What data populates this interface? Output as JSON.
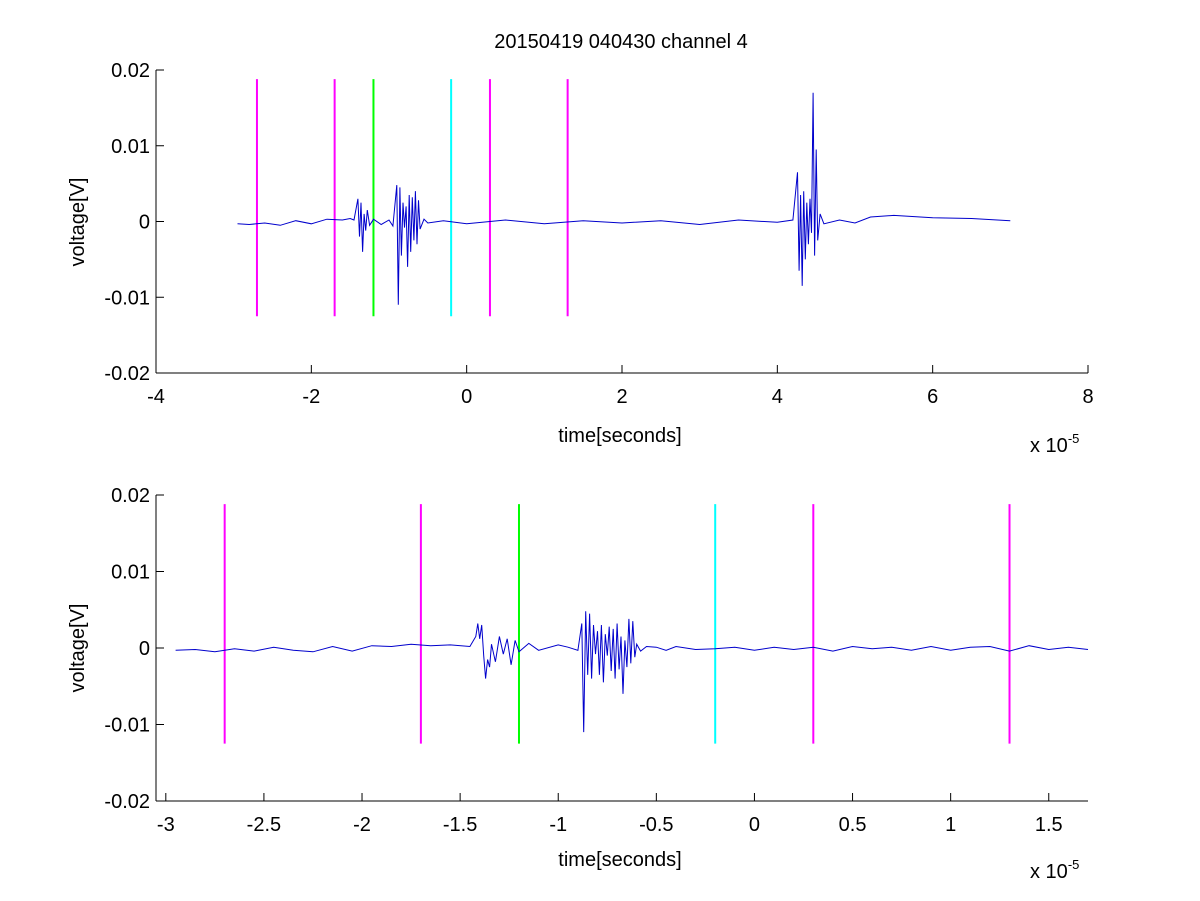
{
  "title": "20150419 040430 channel 4",
  "chart_data": [
    {
      "type": "line",
      "title": "20150419 040430 channel 4",
      "xlabel": "time[seconds]",
      "ylabel": "voltage[V]",
      "x_multiplier_label": "x 10",
      "x_multiplier_exp": "-5",
      "xlim": [
        -4,
        8
      ],
      "ylim": [
        -0.02,
        0.02
      ],
      "x_unit_scale": "1e-5",
      "xticks": [
        -4,
        -2,
        0,
        2,
        4,
        6,
        8
      ],
      "xtick_labels": [
        "-4",
        "-2",
        "0",
        "2",
        "4",
        "6",
        "8"
      ],
      "yticks": [
        0.02,
        0.01,
        0,
        -0.01,
        -0.02
      ],
      "ytick_labels": [
        "0.02",
        "0.01",
        "0",
        "-0.01",
        "-0.02"
      ],
      "grid": false,
      "series": [
        {
          "color": "#0000cc",
          "x": [
            -2.95,
            -2.8,
            -2.6,
            -2.4,
            -2.2,
            -2.0,
            -1.8,
            -1.6,
            -1.5,
            -1.45,
            -1.4,
            -1.38,
            -1.36,
            -1.34,
            -1.32,
            -1.3,
            -1.28,
            -1.25,
            -1.2,
            -1.1,
            -1.0,
            -0.95,
            -0.9,
            -0.88,
            -0.86,
            -0.84,
            -0.82,
            -0.8,
            -0.78,
            -0.76,
            -0.74,
            -0.72,
            -0.7,
            -0.68,
            -0.66,
            -0.64,
            -0.62,
            -0.6,
            -0.55,
            -0.5,
            -0.3,
            0.0,
            0.5,
            1.0,
            1.5,
            2.0,
            2.5,
            3.0,
            3.5,
            4.0,
            4.2,
            4.26,
            4.28,
            4.3,
            4.32,
            4.34,
            4.36,
            4.38,
            4.4,
            4.42,
            4.44,
            4.46,
            4.48,
            4.5,
            4.52,
            4.55,
            4.6,
            4.8,
            5.0,
            5.2,
            5.5,
            6.0,
            6.5,
            7.0
          ],
          "y": [
            -0.0003,
            -0.0004,
            -0.0002,
            -0.0005,
            0.0001,
            -0.0003,
            0.0003,
            0.0002,
            0.0004,
            0.0002,
            0.003,
            -0.002,
            0.0025,
            -0.004,
            0.001,
            -0.0012,
            0.0015,
            -0.0005,
            0.0003,
            -0.0004,
            0.0002,
            -0.0006,
            0.0048,
            -0.011,
            0.0045,
            -0.0045,
            0.0025,
            -0.0008,
            0.002,
            -0.006,
            0.0035,
            -0.004,
            0.0032,
            -0.0025,
            0.004,
            -0.003,
            0.0028,
            -0.001,
            0.0003,
            -0.0002,
            0.0001,
            -0.0003,
            0.0002,
            -0.0003,
            0.0001,
            -0.0002,
            0.0001,
            -0.0004,
            0.0002,
            -0.0001,
            0.0002,
            0.0065,
            -0.0065,
            0.0035,
            -0.0085,
            0.004,
            -0.005,
            0.0025,
            -0.003,
            0.003,
            -0.0015,
            0.017,
            -0.0045,
            0.0095,
            -0.0025,
            0.001,
            -0.0003,
            0.0002,
            -0.0002,
            0.0006,
            0.0008,
            0.0005,
            0.0004,
            0.0001
          ]
        }
      ],
      "markers": [
        {
          "x": -2.7,
          "color": "#ff00ff"
        },
        {
          "x": -1.7,
          "color": "#ff00ff"
        },
        {
          "x": -1.2,
          "color": "#00ff00"
        },
        {
          "x": -0.2,
          "color": "#00ffff"
        },
        {
          "x": 0.3,
          "color": "#ff00ff"
        },
        {
          "x": 1.3,
          "color": "#ff00ff"
        }
      ],
      "marker_ylim": [
        -0.0125,
        0.0188
      ]
    },
    {
      "type": "line",
      "xlabel": "time[seconds]",
      "ylabel": "voltage[V]",
      "x_multiplier_label": "x 10",
      "x_multiplier_exp": "-5",
      "xlim": [
        -3.05,
        1.7
      ],
      "ylim": [
        -0.02,
        0.02
      ],
      "x_unit_scale": "1e-5",
      "xticks": [
        -3,
        -2.5,
        -2,
        -1.5,
        -1,
        -0.5,
        0,
        0.5,
        1,
        1.5
      ],
      "xtick_labels": [
        "-3",
        "-2.5",
        "-2",
        "-1.5",
        "-1",
        "-0.5",
        "0",
        "0.5",
        "1",
        "1.5"
      ],
      "yticks": [
        0.02,
        0.01,
        0,
        -0.01,
        -0.02
      ],
      "ytick_labels": [
        "0.02",
        "0.01",
        "0",
        "-0.01",
        "-0.02"
      ],
      "grid": false,
      "series": [
        {
          "color": "#0000cc",
          "x": [
            -2.95,
            -2.85,
            -2.75,
            -2.65,
            -2.55,
            -2.45,
            -2.35,
            -2.25,
            -2.15,
            -2.05,
            -1.95,
            -1.85,
            -1.75,
            -1.65,
            -1.55,
            -1.45,
            -1.42,
            -1.41,
            -1.4,
            -1.39,
            -1.38,
            -1.37,
            -1.36,
            -1.35,
            -1.34,
            -1.32,
            -1.3,
            -1.28,
            -1.26,
            -1.24,
            -1.22,
            -1.2,
            -1.15,
            -1.1,
            -1.0,
            -0.95,
            -0.9,
            -0.88,
            -0.87,
            -0.86,
            -0.85,
            -0.84,
            -0.83,
            -0.82,
            -0.81,
            -0.8,
            -0.79,
            -0.78,
            -0.77,
            -0.76,
            -0.75,
            -0.74,
            -0.73,
            -0.72,
            -0.71,
            -0.7,
            -0.69,
            -0.68,
            -0.67,
            -0.66,
            -0.65,
            -0.64,
            -0.63,
            -0.62,
            -0.61,
            -0.6,
            -0.58,
            -0.55,
            -0.5,
            -0.45,
            -0.4,
            -0.3,
            -0.2,
            -0.1,
            0.0,
            0.1,
            0.2,
            0.3,
            0.4,
            0.5,
            0.6,
            0.7,
            0.8,
            0.9,
            1.0,
            1.1,
            1.2,
            1.3,
            1.4,
            1.5,
            1.6,
            1.7
          ],
          "y": [
            -0.0003,
            -0.0002,
            -0.0005,
            -0.0001,
            -0.0004,
            0.0001,
            -0.0003,
            -0.0005,
            0.0002,
            -0.0004,
            0.0003,
            0.0002,
            0.0005,
            0.0003,
            0.0004,
            0.0002,
            0.0015,
            0.0032,
            0.0012,
            0.003,
            -0.001,
            -0.004,
            -0.0015,
            -0.0025,
            0.0005,
            -0.0018,
            0.0015,
            -0.0008,
            0.0012,
            -0.0022,
            0.001,
            -0.0005,
            0.0006,
            -0.0003,
            0.0004,
            0.0001,
            -0.0003,
            0.0032,
            -0.011,
            0.0048,
            -0.0035,
            0.0045,
            -0.004,
            0.003,
            -0.0008,
            0.0022,
            -0.0035,
            0.003,
            -0.0045,
            0.0018,
            -0.001,
            0.0028,
            -0.003,
            0.0025,
            -0.004,
            0.0032,
            -0.0028,
            0.0015,
            -0.006,
            0.001,
            -0.0025,
            0.0038,
            -0.002,
            0.0035,
            -0.0012,
            0.0005,
            -0.0004,
            0.0002,
            0.0001,
            -0.0003,
            0.0002,
            -0.0002,
            -0.0001,
            0.0001,
            -0.0003,
            0.0001,
            -0.0002,
            0.0001,
            -0.0004,
            0.0002,
            -0.0001,
            0.0001,
            -0.0003,
            0.0002,
            -0.0003,
            0.0001,
            0.0002,
            -0.0004,
            0.0003,
            -0.0002,
            0.0001,
            -0.0002
          ]
        }
      ],
      "markers": [
        {
          "x": -2.7,
          "color": "#ff00ff"
        },
        {
          "x": -1.7,
          "color": "#ff00ff"
        },
        {
          "x": -1.2,
          "color": "#00ff00"
        },
        {
          "x": -0.2,
          "color": "#00ffff"
        },
        {
          "x": 0.3,
          "color": "#ff00ff"
        },
        {
          "x": 1.3,
          "color": "#ff00ff"
        }
      ],
      "marker_ylim": [
        -0.0125,
        0.0188
      ]
    }
  ]
}
